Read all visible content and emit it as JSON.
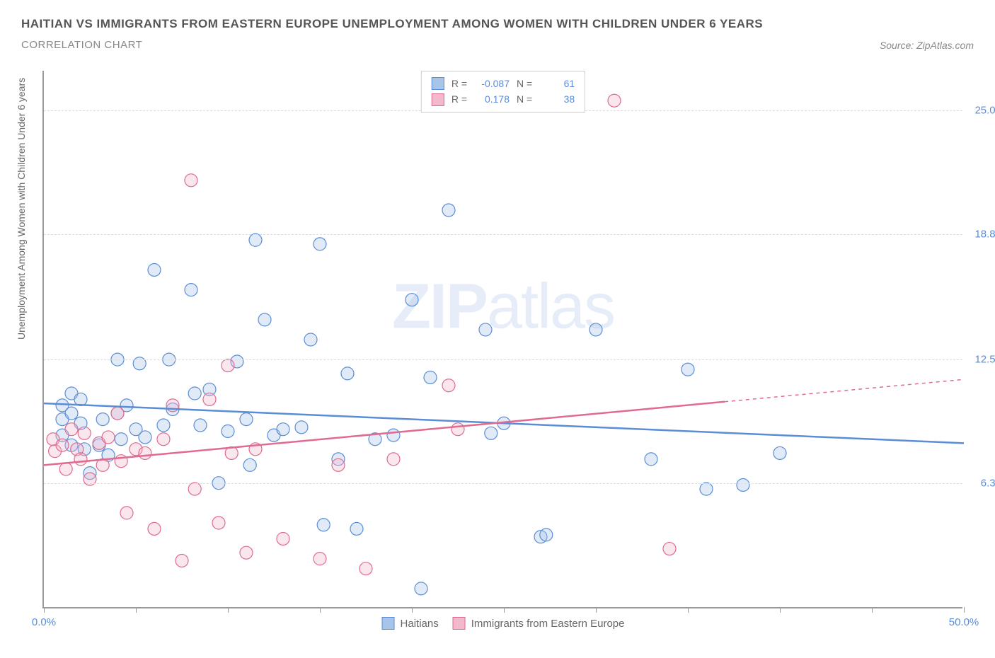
{
  "title": "HAITIAN VS IMMIGRANTS FROM EASTERN EUROPE UNEMPLOYMENT AMONG WOMEN WITH CHILDREN UNDER 6 YEARS",
  "subtitle": "CORRELATION CHART",
  "source": "Source: ZipAtlas.com",
  "watermark_a": "ZIP",
  "watermark_b": "atlas",
  "y_axis_label": "Unemployment Among Women with Children Under 6 years",
  "chart": {
    "type": "scatter",
    "background_color": "#ffffff",
    "grid_color": "#dddddd",
    "axis_color": "#999999",
    "tick_label_color": "#5b8dd6",
    "xlim": [
      0,
      50
    ],
    "ylim": [
      0,
      27
    ],
    "x_ticks": [
      0,
      5,
      10,
      15,
      20,
      25,
      30,
      35,
      40,
      45,
      50
    ],
    "x_tick_labels": {
      "0": "0.0%",
      "50": "50.0%"
    },
    "y_ticks": [
      6.3,
      12.5,
      18.8,
      25.0
    ],
    "y_tick_labels": [
      "6.3%",
      "12.5%",
      "18.8%",
      "25.0%"
    ],
    "marker_radius": 9,
    "marker_stroke_width": 1.2,
    "marker_fill_opacity": 0.35,
    "trend_line_width": 2.5,
    "series": [
      {
        "name": "Haitians",
        "color_stroke": "#5b8dd6",
        "color_fill": "#a8c4e8",
        "R": "-0.087",
        "N": "61",
        "trend": {
          "x1": 0,
          "y1": 10.3,
          "x2": 50,
          "y2": 8.3,
          "dashed_from_x": null
        },
        "points": [
          [
            1,
            9.5
          ],
          [
            1,
            10.2
          ],
          [
            1,
            8.7
          ],
          [
            1.5,
            9.8
          ],
          [
            1.5,
            8.2
          ],
          [
            1.5,
            10.8
          ],
          [
            2,
            10.5
          ],
          [
            2,
            9.3
          ],
          [
            2.2,
            8.0
          ],
          [
            2.5,
            6.8
          ],
          [
            3,
            8.2
          ],
          [
            3.2,
            9.5
          ],
          [
            3.5,
            7.7
          ],
          [
            4,
            12.5
          ],
          [
            4,
            9.8
          ],
          [
            4.2,
            8.5
          ],
          [
            4.5,
            10.2
          ],
          [
            5,
            9.0
          ],
          [
            5.2,
            12.3
          ],
          [
            5.5,
            8.6
          ],
          [
            6,
            17.0
          ],
          [
            6.5,
            9.2
          ],
          [
            6.8,
            12.5
          ],
          [
            7,
            10.0
          ],
          [
            8,
            16.0
          ],
          [
            8.2,
            10.8
          ],
          [
            8.5,
            9.2
          ],
          [
            9,
            11.0
          ],
          [
            9.5,
            6.3
          ],
          [
            10,
            8.9
          ],
          [
            10.5,
            12.4
          ],
          [
            11,
            9.5
          ],
          [
            11.2,
            7.2
          ],
          [
            11.5,
            18.5
          ],
          [
            12,
            14.5
          ],
          [
            12.5,
            8.7
          ],
          [
            13,
            9.0
          ],
          [
            14,
            9.1
          ],
          [
            14.5,
            13.5
          ],
          [
            15,
            18.3
          ],
          [
            15.2,
            4.2
          ],
          [
            16,
            7.5
          ],
          [
            16.5,
            11.8
          ],
          [
            17,
            4.0
          ],
          [
            18,
            8.5
          ],
          [
            19,
            8.7
          ],
          [
            20,
            15.5
          ],
          [
            20.5,
            1.0
          ],
          [
            21,
            11.6
          ],
          [
            22,
            20.0
          ],
          [
            24,
            14.0
          ],
          [
            24.3,
            8.8
          ],
          [
            25,
            9.3
          ],
          [
            27,
            3.6
          ],
          [
            27.3,
            3.7
          ],
          [
            30,
            14.0
          ],
          [
            33,
            7.5
          ],
          [
            35,
            12.0
          ],
          [
            36,
            6.0
          ],
          [
            38,
            6.2
          ],
          [
            40,
            7.8
          ]
        ]
      },
      {
        "name": "Immigrants from Eastern Europe",
        "color_stroke": "#e06b8f",
        "color_fill": "#f2b8cc",
        "R": "0.178",
        "N": "38",
        "trend": {
          "x1": 0,
          "y1": 7.2,
          "x2": 50,
          "y2": 11.5,
          "dashed_from_x": 37
        },
        "points": [
          [
            0.5,
            8.5
          ],
          [
            0.6,
            7.9
          ],
          [
            1,
            8.2
          ],
          [
            1.2,
            7.0
          ],
          [
            1.5,
            9.0
          ],
          [
            1.8,
            8.0
          ],
          [
            2,
            7.5
          ],
          [
            2.2,
            8.8
          ],
          [
            2.5,
            6.5
          ],
          [
            3,
            8.3
          ],
          [
            3.2,
            7.2
          ],
          [
            3.5,
            8.6
          ],
          [
            4,
            9.8
          ],
          [
            4.2,
            7.4
          ],
          [
            4.5,
            4.8
          ],
          [
            5,
            8.0
          ],
          [
            5.5,
            7.8
          ],
          [
            6,
            4.0
          ],
          [
            6.5,
            8.5
          ],
          [
            7,
            10.2
          ],
          [
            7.5,
            2.4
          ],
          [
            8,
            21.5
          ],
          [
            8.2,
            6.0
          ],
          [
            9,
            10.5
          ],
          [
            9.5,
            4.3
          ],
          [
            10,
            12.2
          ],
          [
            10.2,
            7.8
          ],
          [
            11,
            2.8
          ],
          [
            11.5,
            8.0
          ],
          [
            13,
            3.5
          ],
          [
            15,
            2.5
          ],
          [
            16,
            7.2
          ],
          [
            17.5,
            2.0
          ],
          [
            19,
            7.5
          ],
          [
            22,
            11.2
          ],
          [
            22.5,
            9.0
          ],
          [
            31,
            25.5
          ],
          [
            34,
            3.0
          ]
        ]
      }
    ]
  },
  "legend_top_labels": {
    "R": "R =",
    "N": "N ="
  }
}
